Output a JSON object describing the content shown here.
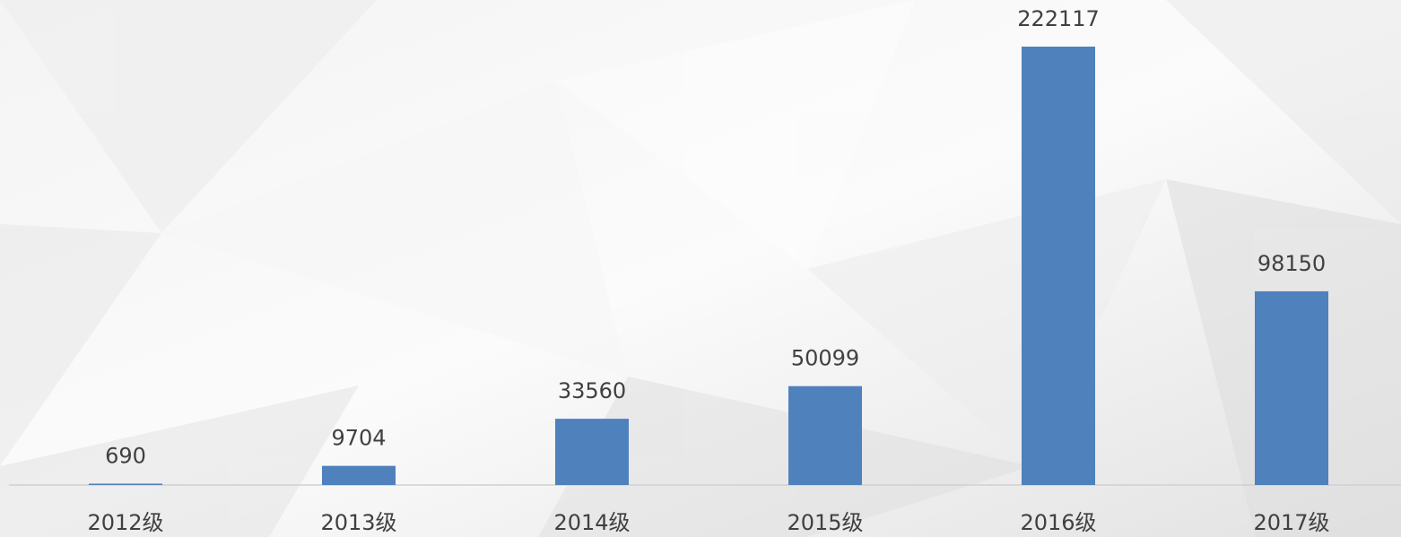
{
  "chart_data": {
    "type": "bar",
    "categories": [
      "2012级",
      "2013级",
      "2014级",
      "2015级",
      "2016级",
      "2017级"
    ],
    "values": [
      690,
      9704,
      33560,
      50099,
      222117,
      98150
    ],
    "color": "#4f81bd"
  }
}
